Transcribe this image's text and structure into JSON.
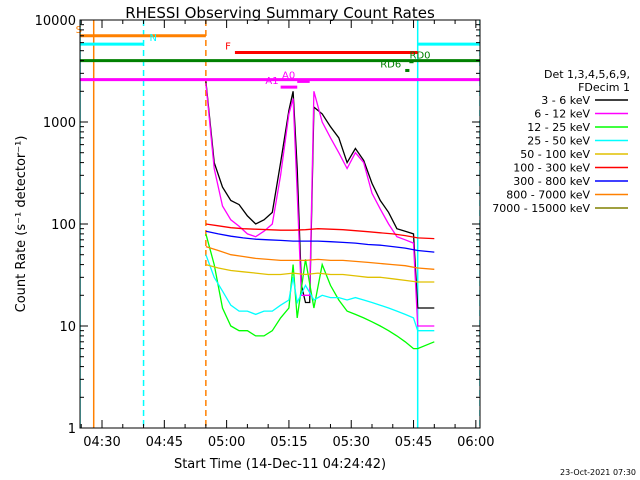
{
  "chart_data": {
    "type": "line",
    "title": "RHESSI Observing Summary Count Rates",
    "xlabel": "Start Time (14-Dec-11 04:24:42)",
    "ylabel": "Count Rate (s⁻¹ detector⁻¹)",
    "y_scale": "log",
    "ylim": [
      1,
      10000
    ],
    "xlim": [
      "04:24:42",
      "06:01:00"
    ],
    "x_ticks": [
      "04:30",
      "04:45",
      "05:00",
      "05:15",
      "05:30",
      "05:45",
      "06:00"
    ],
    "y_ticks": [
      "1",
      "10",
      "100",
      "1000",
      "10000"
    ],
    "legend": {
      "header": [
        "Det 1,3,4,5,6,9,",
        "FDecim 1"
      ],
      "position": "right"
    },
    "series": [
      {
        "name": "3 - 6 keV",
        "color": "#000000",
        "points": [
          [
            "04:55",
            2500
          ],
          [
            "04:57",
            400
          ],
          [
            "04:59",
            230
          ],
          [
            "05:01",
            170
          ],
          [
            "05:03",
            155
          ],
          [
            "05:05",
            120
          ],
          [
            "05:07",
            100
          ],
          [
            "05:09",
            110
          ],
          [
            "05:11",
            130
          ],
          [
            "05:13",
            400
          ],
          [
            "05:15",
            1300
          ],
          [
            "05:16",
            2000
          ],
          [
            "05:17",
            350
          ],
          [
            "05:18",
            25
          ],
          [
            "05:19",
            17
          ],
          [
            "05:20",
            17
          ],
          [
            "05:21",
            1400
          ],
          [
            "05:23",
            1200
          ],
          [
            "05:25",
            900
          ],
          [
            "05:27",
            700
          ],
          [
            "05:29",
            400
          ],
          [
            "05:31",
            550
          ],
          [
            "05:33",
            420
          ],
          [
            "05:35",
            250
          ],
          [
            "05:37",
            170
          ],
          [
            "05:39",
            130
          ],
          [
            "05:41",
            90
          ],
          [
            "05:43",
            85
          ],
          [
            "05:45",
            80
          ],
          [
            "05:46",
            15
          ],
          [
            "05:50",
            15
          ]
        ]
      },
      {
        "name": "6 - 12 keV",
        "color": "#ff00ff",
        "points": [
          [
            "04:55",
            2400
          ],
          [
            "04:57",
            350
          ],
          [
            "04:59",
            150
          ],
          [
            "05:01",
            110
          ],
          [
            "05:03",
            95
          ],
          [
            "05:05",
            80
          ],
          [
            "05:07",
            75
          ],
          [
            "05:09",
            85
          ],
          [
            "05:11",
            100
          ],
          [
            "05:13",
            300
          ],
          [
            "05:15",
            1200
          ],
          [
            "05:16",
            1700
          ],
          [
            "05:17",
            200
          ],
          [
            "05:18",
            20
          ],
          [
            "05:19",
            20
          ],
          [
            "05:20",
            20
          ],
          [
            "05:21",
            2000
          ],
          [
            "05:23",
            1000
          ],
          [
            "05:25",
            700
          ],
          [
            "05:27",
            500
          ],
          [
            "05:29",
            350
          ],
          [
            "05:31",
            500
          ],
          [
            "05:33",
            400
          ],
          [
            "05:35",
            200
          ],
          [
            "05:37",
            140
          ],
          [
            "05:39",
            100
          ],
          [
            "05:41",
            75
          ],
          [
            "05:43",
            70
          ],
          [
            "05:45",
            65
          ],
          [
            "05:46",
            10
          ],
          [
            "05:50",
            10
          ]
        ]
      },
      {
        "name": "12 - 25 keV",
        "color": "#00ff00",
        "points": [
          [
            "04:55",
            80
          ],
          [
            "04:57",
            40
          ],
          [
            "04:59",
            15
          ],
          [
            "05:01",
            10
          ],
          [
            "05:03",
            9
          ],
          [
            "05:05",
            9
          ],
          [
            "05:07",
            8
          ],
          [
            "05:09",
            8
          ],
          [
            "05:11",
            9
          ],
          [
            "05:13",
            12
          ],
          [
            "05:15",
            15
          ],
          [
            "05:16",
            40
          ],
          [
            "05:17",
            12
          ],
          [
            "05:19",
            45
          ],
          [
            "05:21",
            15
          ],
          [
            "05:23",
            40
          ],
          [
            "05:25",
            25
          ],
          [
            "05:27",
            18
          ],
          [
            "05:29",
            14
          ],
          [
            "05:31",
            13
          ],
          [
            "05:33",
            12
          ],
          [
            "05:35",
            11
          ],
          [
            "05:37",
            10
          ],
          [
            "05:39",
            9
          ],
          [
            "05:41",
            8
          ],
          [
            "05:43",
            7
          ],
          [
            "05:45",
            6
          ],
          [
            "05:46",
            6
          ],
          [
            "05:50",
            7
          ]
        ]
      },
      {
        "name": "25 - 50 keV",
        "color": "#00ffff",
        "points": [
          [
            "04:55",
            50
          ],
          [
            "04:57",
            30
          ],
          [
            "04:59",
            22
          ],
          [
            "05:01",
            16
          ],
          [
            "05:03",
            14
          ],
          [
            "05:05",
            14
          ],
          [
            "05:07",
            13
          ],
          [
            "05:09",
            14
          ],
          [
            "05:11",
            14
          ],
          [
            "05:13",
            16
          ],
          [
            "05:15",
            18
          ],
          [
            "05:16",
            30
          ],
          [
            "05:17",
            17
          ],
          [
            "05:19",
            25
          ],
          [
            "05:21",
            18
          ],
          [
            "05:23",
            20
          ],
          [
            "05:25",
            19
          ],
          [
            "05:27",
            19
          ],
          [
            "05:29",
            18
          ],
          [
            "05:31",
            19
          ],
          [
            "05:33",
            18
          ],
          [
            "05:35",
            17
          ],
          [
            "05:37",
            16
          ],
          [
            "05:39",
            15
          ],
          [
            "05:41",
            14
          ],
          [
            "05:43",
            13
          ],
          [
            "05:45",
            12
          ],
          [
            "05:46",
            9
          ],
          [
            "05:50",
            9
          ]
        ]
      },
      {
        "name": "50 - 100 keV",
        "color": "#e0c000",
        "points": [
          [
            "04:55",
            40
          ],
          [
            "04:58",
            37
          ],
          [
            "05:01",
            35
          ],
          [
            "05:04",
            34
          ],
          [
            "05:07",
            33
          ],
          [
            "05:10",
            32
          ],
          [
            "05:13",
            32
          ],
          [
            "05:16",
            33
          ],
          [
            "05:19",
            32
          ],
          [
            "05:22",
            33
          ],
          [
            "05:25",
            32
          ],
          [
            "05:28",
            32
          ],
          [
            "05:31",
            31
          ],
          [
            "05:34",
            30
          ],
          [
            "05:37",
            30
          ],
          [
            "05:40",
            29
          ],
          [
            "05:43",
            28
          ],
          [
            "05:46",
            27
          ],
          [
            "05:50",
            27
          ]
        ]
      },
      {
        "name": "100 - 300 keV",
        "color": "#ff0000",
        "points": [
          [
            "04:55",
            100
          ],
          [
            "04:58",
            96
          ],
          [
            "05:01",
            92
          ],
          [
            "05:04",
            90
          ],
          [
            "05:07",
            89
          ],
          [
            "05:10",
            88
          ],
          [
            "05:13",
            87
          ],
          [
            "05:16",
            87
          ],
          [
            "05:19",
            88
          ],
          [
            "05:22",
            90
          ],
          [
            "05:25",
            89
          ],
          [
            "05:28",
            88
          ],
          [
            "05:31",
            86
          ],
          [
            "05:34",
            84
          ],
          [
            "05:37",
            82
          ],
          [
            "05:40",
            80
          ],
          [
            "05:43",
            77
          ],
          [
            "05:46",
            73
          ],
          [
            "05:50",
            72
          ]
        ]
      },
      {
        "name": "300 - 800 keV",
        "color": "#0000ff",
        "points": [
          [
            "04:55",
            85
          ],
          [
            "04:58",
            80
          ],
          [
            "05:01",
            76
          ],
          [
            "05:04",
            73
          ],
          [
            "05:07",
            71
          ],
          [
            "05:10",
            70
          ],
          [
            "05:13",
            69
          ],
          [
            "05:16",
            68
          ],
          [
            "05:19",
            68
          ],
          [
            "05:22",
            68
          ],
          [
            "05:25",
            67
          ],
          [
            "05:28",
            66
          ],
          [
            "05:31",
            65
          ],
          [
            "05:34",
            63
          ],
          [
            "05:37",
            62
          ],
          [
            "05:40",
            60
          ],
          [
            "05:43",
            58
          ],
          [
            "05:46",
            55
          ],
          [
            "05:50",
            53
          ]
        ]
      },
      {
        "name": "800 - 7000 keV",
        "color": "#ff8000",
        "points": [
          [
            "04:55",
            60
          ],
          [
            "04:58",
            55
          ],
          [
            "05:01",
            50
          ],
          [
            "05:04",
            48
          ],
          [
            "05:07",
            46
          ],
          [
            "05:10",
            45
          ],
          [
            "05:13",
            44
          ],
          [
            "05:16",
            44
          ],
          [
            "05:19",
            44
          ],
          [
            "05:22",
            45
          ],
          [
            "05:25",
            44
          ],
          [
            "05:28",
            44
          ],
          [
            "05:31",
            43
          ],
          [
            "05:34",
            42
          ],
          [
            "05:37",
            41
          ],
          [
            "05:40",
            40
          ],
          [
            "05:43",
            39
          ],
          [
            "05:46",
            37
          ],
          [
            "05:50",
            36
          ]
        ]
      },
      {
        "name": "7000 - 15000 keV",
        "color": "#808000",
        "points": []
      }
    ],
    "state_bars": [
      {
        "label": "S",
        "color": "#ff8000",
        "from": "04:24:42",
        "to": "04:55",
        "y": 7000
      },
      {
        "label": "N",
        "color": "#00ffff",
        "from": "04:24:42",
        "to": "04:40",
        "y": 5800
      },
      {
        "label": "N",
        "color": "#00ffff",
        "from": "05:46",
        "to": "06:01",
        "y": 5800
      },
      {
        "label": "F",
        "color": "#ff0000",
        "from": "05:02",
        "to": "05:46",
        "y": 4800
      },
      {
        "label": "",
        "color": "#008000",
        "from": "04:24:42",
        "to": "06:01",
        "y": 4000
      },
      {
        "label": "RD6",
        "color": "#008000",
        "from": "05:43",
        "to": "05:44",
        "y": 3200
      },
      {
        "label": "RD0",
        "color": "#008000",
        "from": "05:44",
        "to": "05:45",
        "y": 3900
      },
      {
        "label": "",
        "color": "#ff00ff",
        "from": "04:24:42",
        "to": "06:01",
        "y": 2600
      },
      {
        "label": "A1",
        "color": "#ff00ff",
        "from": "05:13",
        "to": "05:17",
        "y": 2200
      },
      {
        "label": "A0",
        "color": "#ff00ff",
        "from": "05:17",
        "to": "05:20",
        "y": 2500
      }
    ],
    "vertical_lines": [
      {
        "t": "04:24:42",
        "color": "#00ffff",
        "style": "solid"
      },
      {
        "t": "04:28",
        "color": "#ff8000",
        "style": "solid"
      },
      {
        "t": "04:40",
        "color": "#00ffff",
        "style": "dashed"
      },
      {
        "t": "04:55",
        "color": "#ff8000",
        "style": "dashed"
      },
      {
        "t": "05:46",
        "color": "#00ffff",
        "style": "solid"
      },
      {
        "t": "06:01",
        "color": "#00ffff",
        "style": "dashed"
      }
    ],
    "footer_timestamp": "23-Oct-2021 07:30"
  }
}
